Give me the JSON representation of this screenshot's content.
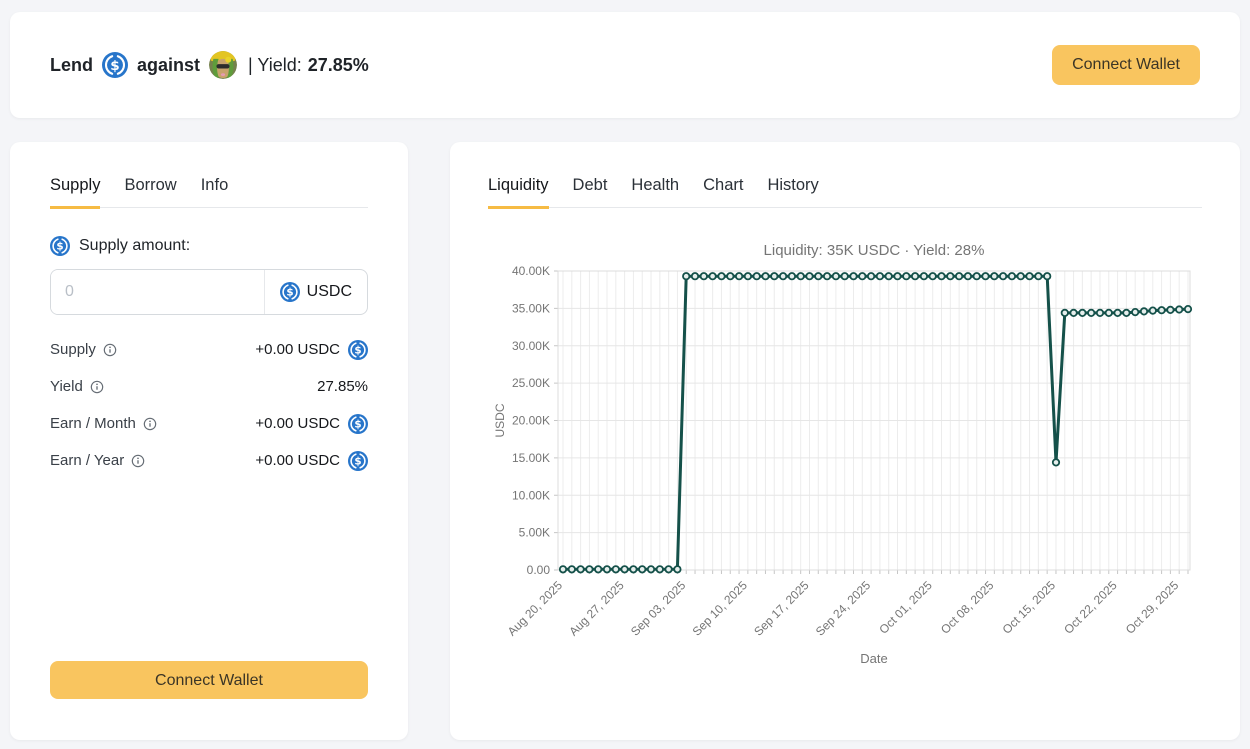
{
  "header": {
    "lend_label": "Lend",
    "against_label": "against",
    "yield_label": "| Yield:",
    "yield_value": "27.85%",
    "connect_wallet_label": "Connect Wallet"
  },
  "supply_panel": {
    "tabs": [
      {
        "label": "Supply",
        "active": true
      },
      {
        "label": "Borrow",
        "active": false
      },
      {
        "label": "Info",
        "active": false
      }
    ],
    "supply_amount_label": "Supply amount:",
    "input": {
      "placeholder": "0",
      "currency": "USDC"
    },
    "rows": [
      {
        "label": "Supply",
        "value": "+0.00 USDC",
        "has_currency_icon": true
      },
      {
        "label": "Yield",
        "value": "27.85%",
        "has_currency_icon": false
      },
      {
        "label": "Earn / Month",
        "value": "+0.00 USDC",
        "has_currency_icon": true
      },
      {
        "label": "Earn / Year",
        "value": "+0.00 USDC",
        "has_currency_icon": true
      }
    ],
    "connect_wallet_label": "Connect Wallet"
  },
  "chart_panel": {
    "tabs": [
      {
        "label": "Liquidity",
        "active": true
      },
      {
        "label": "Debt",
        "active": false
      },
      {
        "label": "Health",
        "active": false
      },
      {
        "label": "Chart",
        "active": false
      },
      {
        "label": "History",
        "active": false
      }
    ]
  },
  "chart_data": {
    "type": "line",
    "title": "Liquidity: 35K USDC · Yield: 28%",
    "xlabel": "Date",
    "ylabel": "USDC",
    "ylim": [
      0,
      40000
    ],
    "y_tick_step": 5000,
    "y_tick_labels": [
      "0.00",
      "5.00K",
      "10.00K",
      "15.00K",
      "20.00K",
      "25.00K",
      "30.00K",
      "35.00K",
      "40.00K"
    ],
    "x_tick_labels": [
      "Aug 20, 2025",
      "Aug 27, 2025",
      "Sep 03, 2025",
      "Sep 10, 2025",
      "Sep 17, 2025",
      "Sep 24, 2025",
      "Oct 01, 2025",
      "Oct 08, 2025",
      "Oct 15, 2025",
      "Oct 22, 2025",
      "Oct 29, 2025"
    ],
    "x_tick_day_indices": [
      0,
      7,
      14,
      21,
      28,
      35,
      42,
      49,
      56,
      63,
      70
    ],
    "start_date": "Aug 20, 2025",
    "cadence": "daily",
    "grid": true,
    "legend": "none",
    "line_color": "#15514a",
    "marker_fill": "#e7efed",
    "values": [
      100,
      100,
      100,
      100,
      100,
      100,
      100,
      100,
      100,
      100,
      100,
      100,
      100,
      100,
      39300,
      39300,
      39300,
      39300,
      39300,
      39300,
      39300,
      39300,
      39300,
      39300,
      39300,
      39300,
      39300,
      39300,
      39300,
      39300,
      39300,
      39300,
      39300,
      39300,
      39300,
      39300,
      39300,
      39300,
      39300,
      39300,
      39300,
      39300,
      39300,
      39300,
      39300,
      39300,
      39300,
      39300,
      39300,
      39300,
      39300,
      39300,
      39300,
      39300,
      39300,
      39300,
      14400,
      34400,
      34400,
      34400,
      34400,
      34400,
      34400,
      34400,
      34400,
      34500,
      34600,
      34700,
      34750,
      34800,
      34850,
      34900
    ]
  },
  "colors": {
    "accent_amber": "#f6bb44",
    "button_amber": "#f9c55f",
    "usdc_blue": "#2775ca",
    "line_teal": "#15514a",
    "page_bg": "#f4f5f8"
  }
}
